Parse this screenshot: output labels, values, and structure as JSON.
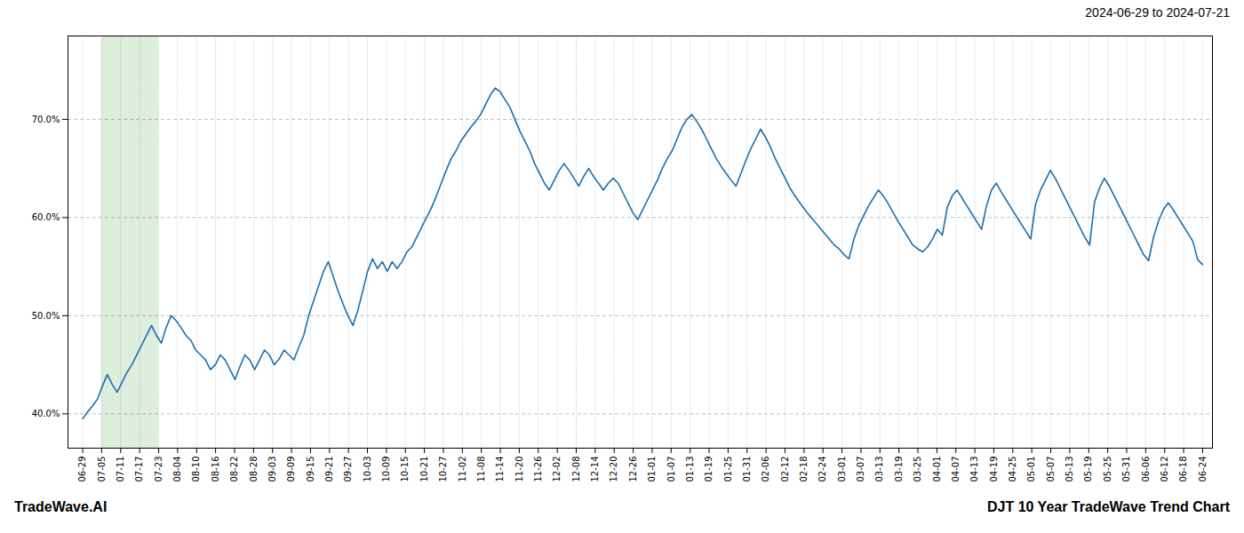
{
  "chart_data": {
    "type": "line",
    "title": "DJT 10 Year TradeWave Trend Chart",
    "subtitle": "2024-06-29 to 2024-07-21",
    "annotations": [
      "TradeWave.AI"
    ],
    "color": "#1a6faf",
    "grid": true,
    "shade": {
      "from": 3.8644,
      "to": 15.4576,
      "color": "#ddeedd"
    },
    "xlim": [
      -3,
      230
    ],
    "xticks": [
      {
        "value": 0,
        "label": "06-29"
      },
      {
        "value": 3.8644,
        "label": "07-05"
      },
      {
        "value": 7.7288,
        "label": "07-11"
      },
      {
        "value": 11.5932,
        "label": "07-17"
      },
      {
        "value": 15.4576,
        "label": "07-23"
      },
      {
        "value": 19.322,
        "label": "08-04"
      },
      {
        "value": 23.1864,
        "label": "08-10"
      },
      {
        "value": 27.0508,
        "label": "08-16"
      },
      {
        "value": 30.9153,
        "label": "08-22"
      },
      {
        "value": 34.7797,
        "label": "08-28"
      },
      {
        "value": 38.6441,
        "label": "09-03"
      },
      {
        "value": 42.5085,
        "label": "09-09"
      },
      {
        "value": 46.3729,
        "label": "09-15"
      },
      {
        "value": 50.2373,
        "label": "09-21"
      },
      {
        "value": 54.1017,
        "label": "09-27"
      },
      {
        "value": 57.9661,
        "label": "10-03"
      },
      {
        "value": 61.8305,
        "label": "10-09"
      },
      {
        "value": 65.6949,
        "label": "10-15"
      },
      {
        "value": 69.5593,
        "label": "10-21"
      },
      {
        "value": 73.4237,
        "label": "10-27"
      },
      {
        "value": 77.2881,
        "label": "11-02"
      },
      {
        "value": 81.1525,
        "label": "11-08"
      },
      {
        "value": 85.0169,
        "label": "11-14"
      },
      {
        "value": 88.8814,
        "label": "11-20"
      },
      {
        "value": 92.7458,
        "label": "11-26"
      },
      {
        "value": 96.6102,
        "label": "12-02"
      },
      {
        "value": 100.4746,
        "label": "12-08"
      },
      {
        "value": 104.339,
        "label": "12-14"
      },
      {
        "value": 108.2034,
        "label": "12-20"
      },
      {
        "value": 112.0678,
        "label": "12-26"
      },
      {
        "value": 115.9322,
        "label": "01-01"
      },
      {
        "value": 119.7966,
        "label": "01-07"
      },
      {
        "value": 123.661,
        "label": "01-13"
      },
      {
        "value": 127.5254,
        "label": "01-19"
      },
      {
        "value": 131.3898,
        "label": "01-25"
      },
      {
        "value": 135.2542,
        "label": "01-31"
      },
      {
        "value": 139.1186,
        "label": "02-06"
      },
      {
        "value": 142.9831,
        "label": "02-12"
      },
      {
        "value": 146.8475,
        "label": "02-18"
      },
      {
        "value": 150.7119,
        "label": "02-24"
      },
      {
        "value": 154.5763,
        "label": "03-01"
      },
      {
        "value": 158.4407,
        "label": "03-07"
      },
      {
        "value": 162.3051,
        "label": "03-13"
      },
      {
        "value": 166.1695,
        "label": "03-19"
      },
      {
        "value": 170.0339,
        "label": "03-25"
      },
      {
        "value": 173.8983,
        "label": "04-01"
      },
      {
        "value": 177.7627,
        "label": "04-07"
      },
      {
        "value": 181.6271,
        "label": "04-13"
      },
      {
        "value": 185.4915,
        "label": "04-19"
      },
      {
        "value": 189.3559,
        "label": "04-25"
      },
      {
        "value": 193.2203,
        "label": "05-01"
      },
      {
        "value": 197.0847,
        "label": "05-07"
      },
      {
        "value": 200.9492,
        "label": "05-13"
      },
      {
        "value": 204.8136,
        "label": "05-19"
      },
      {
        "value": 208.678,
        "label": "05-25"
      },
      {
        "value": 212.5424,
        "label": "05-31"
      },
      {
        "value": 216.4068,
        "label": "06-06"
      },
      {
        "value": 220.2712,
        "label": "06-12"
      },
      {
        "value": 224.1356,
        "label": "06-18"
      },
      {
        "value": 228,
        "label": "06-24"
      }
    ],
    "ylim": [
      0.365,
      0.785
    ],
    "yticks": [
      {
        "value": 0.4,
        "label": "40.0%"
      },
      {
        "value": 0.5,
        "label": "50.0%"
      },
      {
        "value": 0.6,
        "label": "60.0%"
      },
      {
        "value": 0.7,
        "label": "70.0%"
      }
    ],
    "values": [
      0.395,
      0.402,
      0.408,
      0.415,
      0.428,
      0.44,
      0.43,
      0.422,
      0.432,
      0.442,
      0.45,
      0.46,
      0.47,
      0.48,
      0.49,
      0.48,
      0.472,
      0.488,
      0.5,
      0.495,
      0.488,
      0.48,
      0.475,
      0.465,
      0.46,
      0.455,
      0.445,
      0.45,
      0.46,
      0.455,
      0.445,
      0.435,
      0.448,
      0.46,
      0.455,
      0.445,
      0.455,
      0.465,
      0.46,
      0.45,
      0.456,
      0.465,
      0.46,
      0.455,
      0.468,
      0.48,
      0.5,
      0.515,
      0.53,
      0.545,
      0.555,
      0.54,
      0.525,
      0.512,
      0.5,
      0.49,
      0.505,
      0.525,
      0.545,
      0.558,
      0.548,
      0.555,
      0.545,
      0.555,
      0.548,
      0.555,
      0.565,
      0.57,
      0.58,
      0.59,
      0.6,
      0.61,
      0.622,
      0.635,
      0.648,
      0.66,
      0.668,
      0.678,
      0.685,
      0.692,
      0.698,
      0.705,
      0.715,
      0.725,
      0.732,
      0.728,
      0.72,
      0.712,
      0.7,
      0.688,
      0.678,
      0.668,
      0.655,
      0.645,
      0.635,
      0.628,
      0.638,
      0.648,
      0.655,
      0.648,
      0.64,
      0.632,
      0.642,
      0.65,
      0.642,
      0.635,
      0.628,
      0.635,
      0.64,
      0.635,
      0.625,
      0.615,
      0.605,
      0.598,
      0.608,
      0.618,
      0.628,
      0.638,
      0.65,
      0.66,
      0.668,
      0.68,
      0.692,
      0.7,
      0.705,
      0.698,
      0.69,
      0.68,
      0.67,
      0.66,
      0.652,
      0.645,
      0.638,
      0.632,
      0.645,
      0.658,
      0.67,
      0.68,
      0.69,
      0.682,
      0.672,
      0.66,
      0.65,
      0.64,
      0.63,
      0.622,
      0.615,
      0.608,
      0.602,
      0.596,
      0.59,
      0.584,
      0.578,
      0.572,
      0.568,
      0.562,
      0.558,
      0.578,
      0.592,
      0.602,
      0.612,
      0.62,
      0.628,
      0.622,
      0.614,
      0.605,
      0.596,
      0.588,
      0.58,
      0.572,
      0.568,
      0.565,
      0.57,
      0.578,
      0.588,
      0.582,
      0.61,
      0.622,
      0.628,
      0.62,
      0.612,
      0.604,
      0.596,
      0.588,
      0.612,
      0.628,
      0.635,
      0.626,
      0.618,
      0.61,
      0.602,
      0.594,
      0.586,
      0.578,
      0.614,
      0.628,
      0.638,
      0.648,
      0.64,
      0.63,
      0.62,
      0.61,
      0.6,
      0.59,
      0.58,
      0.572,
      0.616,
      0.63,
      0.64,
      0.632,
      0.622,
      0.612,
      0.602,
      0.592,
      0.582,
      0.572,
      0.562,
      0.556,
      0.58,
      0.596,
      0.608,
      0.615,
      0.608,
      0.6,
      0.592,
      0.584,
      0.576,
      0.557,
      0.552
    ]
  }
}
